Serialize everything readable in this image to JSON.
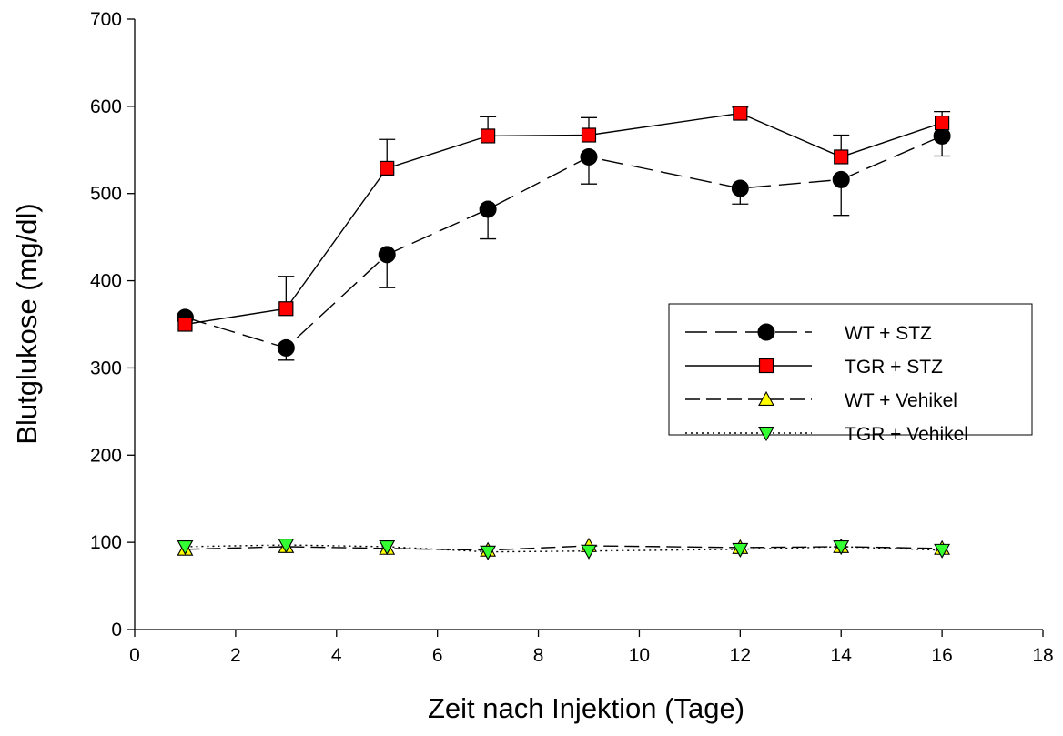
{
  "chart_data": {
    "type": "line",
    "title": "",
    "xlabel": "Zeit nach Injektion (Tage)",
    "ylabel": "Blutglukose (mg/dl)",
    "xlim": [
      0,
      18
    ],
    "ylim": [
      0,
      700
    ],
    "xticks": [
      0,
      2,
      4,
      6,
      8,
      10,
      12,
      14,
      16,
      18
    ],
    "yticks": [
      0,
      100,
      200,
      300,
      400,
      500,
      600,
      700
    ],
    "grid": false,
    "legend_position": "right",
    "x": [
      1,
      3,
      5,
      7,
      9,
      12,
      14,
      16
    ],
    "series": [
      {
        "name": "WT + STZ",
        "values": [
          358,
          323,
          430,
          482,
          542,
          506,
          516,
          566
        ],
        "error": [
          null,
          14,
          38,
          34,
          31,
          18,
          41,
          23
        ],
        "marker": "circle",
        "line": "long-dash",
        "color": "#000000"
      },
      {
        "name": "TGR + STZ",
        "values": [
          350,
          368,
          529,
          566,
          567,
          592,
          542,
          581
        ],
        "error": [
          null,
          37,
          33,
          22,
          20,
          7,
          25,
          13
        ],
        "marker": "square",
        "line": "solid",
        "color": "#ff0000"
      },
      {
        "name": "WT + Vehikel",
        "values": [
          92,
          95,
          93,
          91,
          96,
          94,
          95,
          93
        ],
        "marker": "triangle-up",
        "line": "dash",
        "color": "#ffff00"
      },
      {
        "name": "TGR + Vehikel",
        "values": [
          95,
          97,
          95,
          89,
          90,
          92,
          95,
          91
        ],
        "marker": "triangle-down",
        "line": "dotted",
        "color": "#33ff33"
      }
    ]
  }
}
